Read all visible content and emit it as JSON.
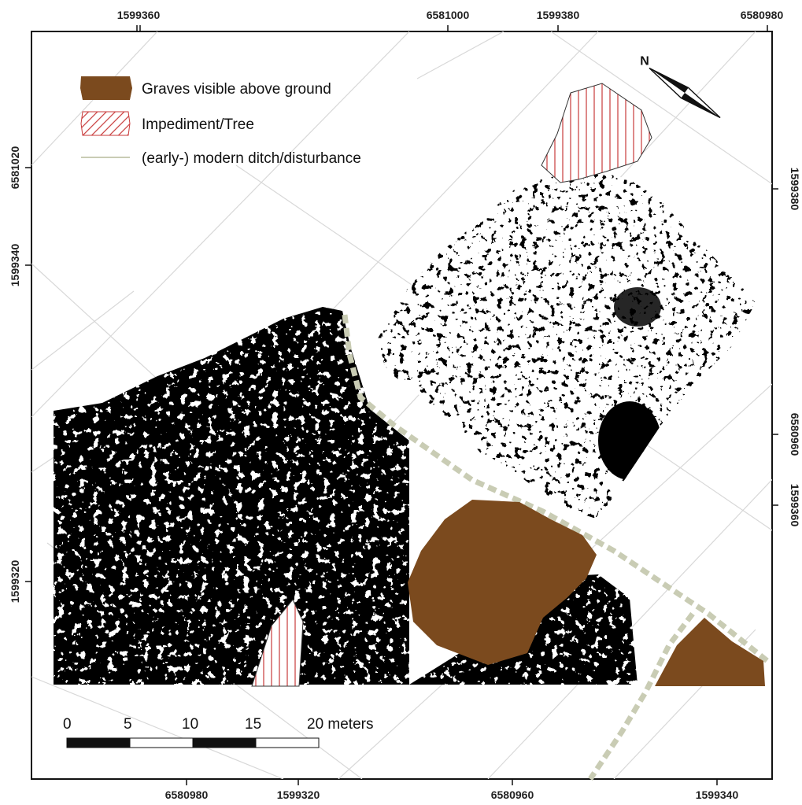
{
  "coords": {
    "top": [
      "1599360",
      "6581000",
      "1599380",
      "6580980"
    ],
    "bottom": [
      "6580980",
      "1599320",
      "6580960",
      "1599340"
    ],
    "left": [
      "6581020",
      "1599340",
      "1599320"
    ],
    "right": [
      "1599380",
      "6580960",
      "1599360"
    ]
  },
  "legend": {
    "graves_label": "Graves visible above ground",
    "impediment_label": "Impediment/Tree",
    "ditch_label": "(early-) modern ditch/disturbance"
  },
  "north_label": "N",
  "scale": {
    "ticks": [
      "0",
      "5",
      "10",
      "15",
      "20 meters"
    ]
  },
  "colors": {
    "grave": "#7b4a1e",
    "impediment_hatch": "#c83a3a",
    "ditch": "#c9ccb4",
    "frame": "#111111",
    "grid": "#d8d8d8"
  }
}
